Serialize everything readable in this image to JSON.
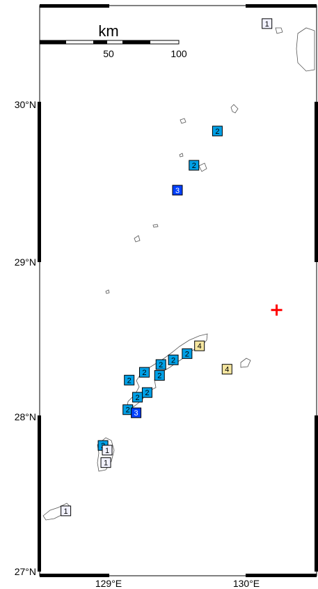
{
  "colors": {
    "intensity_1": "#f2f2ff",
    "intensity_2": "#00a0e6",
    "intensity_3": "#0040ff",
    "intensity_4": "#f5e6a0",
    "epicenter": "#ff0000",
    "frame": "#000000",
    "coast": "#555555"
  },
  "scale_bar": {
    "title": "km",
    "ticks": [
      "50",
      "100"
    ]
  },
  "axes": {
    "lat_labels": [
      {
        "value": 30,
        "text": "30°N"
      },
      {
        "value": 29,
        "text": "29°N"
      },
      {
        "value": 28,
        "text": "28°N"
      },
      {
        "value": 27,
        "text": "27°N"
      }
    ],
    "lon_labels": [
      {
        "value": 129,
        "text": "129°E"
      },
      {
        "value": 130,
        "text": "130°E"
      }
    ],
    "lon_range": [
      128.55,
      130.48
    ],
    "lat_range": [
      26.98,
      30.65
    ]
  },
  "epicenter": {
    "lon": 130.22,
    "lat": 28.68
  },
  "stations": [
    {
      "lon": 130.15,
      "lat": 30.52,
      "intensity": "1"
    },
    {
      "lon": 129.79,
      "lat": 29.83,
      "intensity": "2"
    },
    {
      "lon": 129.62,
      "lat": 29.61,
      "intensity": "2"
    },
    {
      "lon": 129.5,
      "lat": 29.45,
      "intensity": "3"
    },
    {
      "lon": 129.66,
      "lat": 28.45,
      "intensity": "4"
    },
    {
      "lon": 129.57,
      "lat": 28.4,
      "intensity": "2"
    },
    {
      "lon": 129.47,
      "lat": 28.36,
      "intensity": "2"
    },
    {
      "lon": 129.38,
      "lat": 28.33,
      "intensity": "2"
    },
    {
      "lon": 129.26,
      "lat": 28.28,
      "intensity": "2"
    },
    {
      "lon": 129.37,
      "lat": 28.26,
      "intensity": "2"
    },
    {
      "lon": 129.15,
      "lat": 28.23,
      "intensity": "2"
    },
    {
      "lon": 129.28,
      "lat": 28.15,
      "intensity": "2"
    },
    {
      "lon": 129.21,
      "lat": 28.12,
      "intensity": "2"
    },
    {
      "lon": 129.14,
      "lat": 28.04,
      "intensity": "2"
    },
    {
      "lon": 129.2,
      "lat": 28.02,
      "intensity": "3"
    },
    {
      "lon": 129.86,
      "lat": 28.3,
      "intensity": "4"
    },
    {
      "lon": 128.96,
      "lat": 27.81,
      "intensity": "2"
    },
    {
      "lon": 128.99,
      "lat": 27.78,
      "intensity": "1"
    },
    {
      "lon": 128.98,
      "lat": 27.7,
      "intensity": "1"
    },
    {
      "lon": 128.69,
      "lat": 27.39,
      "intensity": "1"
    }
  ]
}
